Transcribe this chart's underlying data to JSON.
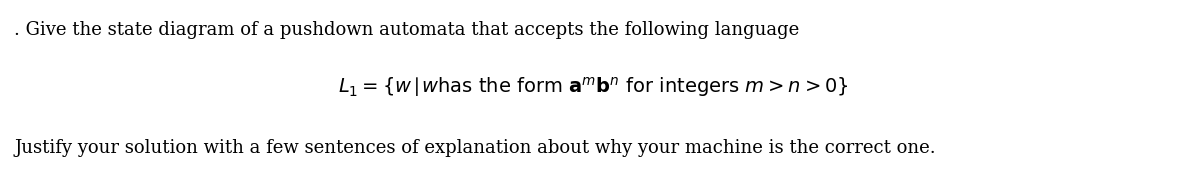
{
  "line1": ". Give the state diagram of a pushdown automata that accepts the following language",
  "line3": "Justify your solution with a few sentences of explanation about why your machine is the correct one.",
  "math_line": "$L_1 = \\{w|\\textit{w}\\mathrm{has\\ the\\ form\\ } \\mathbf{a}^m\\mathbf{b}^n \\mathrm{\\ for\\ integers\\ } m > n > 0\\}$",
  "bg_color": "#ffffff",
  "text_color": "#000000",
  "font_size_main": 13.0,
  "font_size_center": 14.0,
  "fig_width": 11.86,
  "fig_height": 1.74,
  "dpi": 100
}
